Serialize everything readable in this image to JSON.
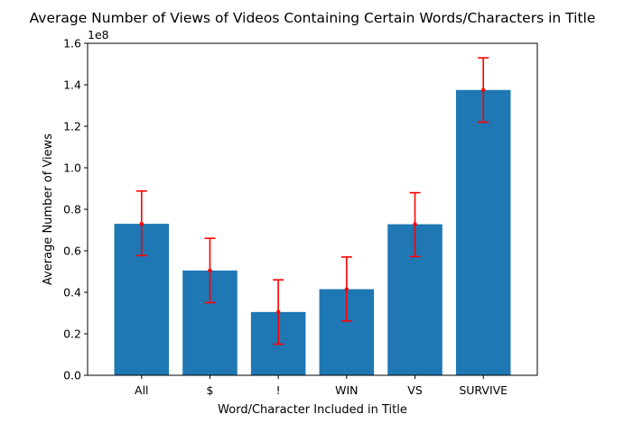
{
  "chart_data": {
    "type": "bar",
    "title": "Average Number of Views of Videos Containing Certain Words/Characters in Title",
    "xlabel": "Word/Character Included in Title",
    "ylabel": "Average Number of Views",
    "y_offset_label": "1e8",
    "categories": [
      "All",
      "$",
      "!",
      "WIN",
      "VS",
      "SURVIVE"
    ],
    "values": [
      73000000,
      50500000,
      30500000,
      41500000,
      72800000,
      137500000
    ],
    "error_low": [
      57700000,
      35000000,
      15000000,
      26200000,
      57200000,
      122000000
    ],
    "error_high": [
      88800000,
      66000000,
      46000000,
      57000000,
      88000000,
      153000000
    ],
    "ylim": [
      0,
      160000000
    ],
    "yticks": [
      0,
      20000000,
      40000000,
      60000000,
      80000000,
      100000000,
      120000000,
      140000000,
      160000000
    ],
    "ytick_labels": [
      "0.0",
      "0.2",
      "0.4",
      "0.6",
      "0.8",
      "1.0",
      "1.2",
      "1.4",
      "1.6"
    ],
    "grid": false,
    "bar_color": "#1f77b4",
    "error_color": "#ff0000"
  }
}
